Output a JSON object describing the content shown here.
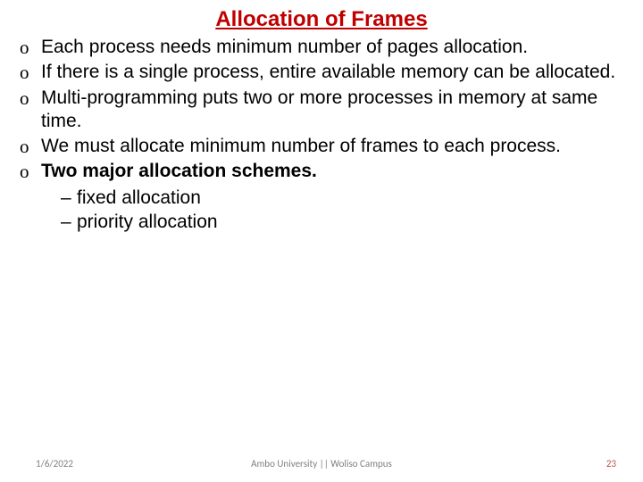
{
  "title": {
    "text": "Allocation of Frames",
    "color": "#c00000",
    "fontsize": 24
  },
  "bullets": [
    {
      "text": "Each process needs minimum number of pages allocation.",
      "bold": false
    },
    {
      "text": "If there is a single process, entire available memory can be allocated.",
      "bold": false
    },
    {
      "text": "Multi-programming puts two or more processes in memory at same time.",
      "bold": false
    },
    {
      "text": "We must allocate minimum number of frames to each process.",
      "bold": false
    },
    {
      "text": "Two major allocation schemes.",
      "bold": true,
      "sub": [
        {
          "text": "fixed allocation"
        },
        {
          "text": "priority allocation"
        }
      ]
    }
  ],
  "body_style": {
    "color": "#000000",
    "fontsize": 21
  },
  "footer": {
    "date": "1/6/2022",
    "center": "Ambo University || Woliso Campus",
    "page": "23",
    "fontsize": 11,
    "color": "#7f7f7f",
    "page_color": "#c0504d"
  }
}
